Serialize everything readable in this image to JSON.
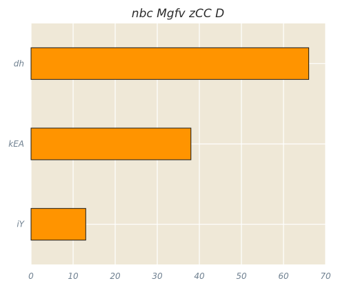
{
  "chart_data": {
    "type": "bar",
    "orientation": "horizontal",
    "title": "nbc Mgfv zCC D",
    "xlabel": "",
    "ylabel": "",
    "categories": [
      "dh",
      "kEA",
      "iY"
    ],
    "values": [
      66,
      38,
      13
    ],
    "xlim": [
      0,
      70
    ],
    "xticks": [
      0,
      10,
      20,
      30,
      40,
      50,
      60,
      70
    ],
    "grid": true,
    "legend": "none",
    "colors": {
      "background": "#efe8d7",
      "grid": "#ffffff",
      "bar_fill": "#ff9400",
      "bar_edge": "#1a1a1a"
    }
  }
}
